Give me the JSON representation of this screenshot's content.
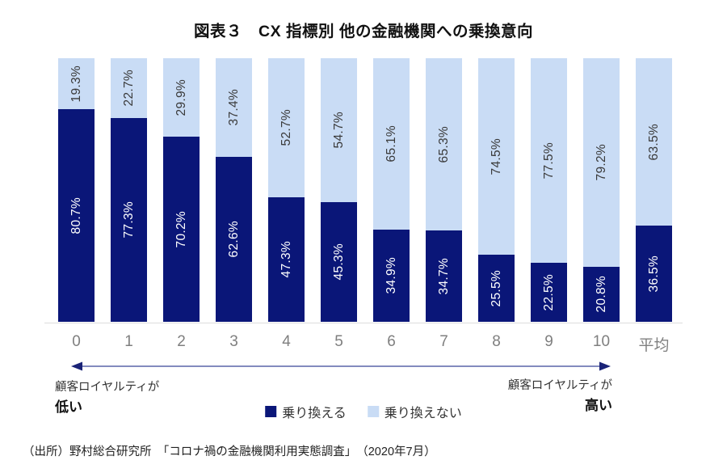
{
  "title": "図表３　CX 指標別 他の金融機関への乗換意向",
  "chart_data": {
    "type": "bar",
    "stacked": true,
    "unit": "%",
    "title": "図表３　CX 指標別 他の金融機関への乗換意向",
    "categories": [
      "0",
      "1",
      "2",
      "3",
      "4",
      "5",
      "6",
      "7",
      "8",
      "9",
      "10",
      "平均"
    ],
    "series": [
      {
        "name": "乗り換える",
        "color": "#0a1678",
        "values": [
          80.7,
          77.3,
          70.2,
          62.6,
          47.3,
          45.3,
          34.9,
          34.7,
          25.5,
          22.5,
          20.8,
          36.5
        ]
      },
      {
        "name": "乗り換えない",
        "color": "#c9dcf5",
        "values": [
          19.3,
          22.7,
          29.9,
          37.4,
          52.7,
          54.7,
          65.1,
          65.3,
          74.5,
          77.5,
          79.2,
          63.5
        ]
      }
    ],
    "ylim": [
      0,
      100
    ],
    "grid": false,
    "legend_position": "bottom",
    "value_labels": "rotated -90deg, centered in each segment, format {v}%"
  },
  "annotations": {
    "left_line1": "顧客ロイヤルティが",
    "left_line2": "低い",
    "right_line1": "顧客ロイヤルティが",
    "right_line2": "高い"
  },
  "legend": {
    "items": [
      {
        "label": "乗り換える",
        "color": "#0a1678"
      },
      {
        "label": "乗り換えない",
        "color": "#c9dcf5"
      }
    ]
  },
  "colors": {
    "switch_segment": "#0a1678",
    "stay_segment": "#c9dcf5",
    "axis_line": "#dcdcdc",
    "tick_label": "#7f7f7f",
    "arrow": "#1a2377"
  },
  "source": "（出所）野村総合研究所　「コロナ禍の金融機関利用実態調査」　（2020年7月）"
}
